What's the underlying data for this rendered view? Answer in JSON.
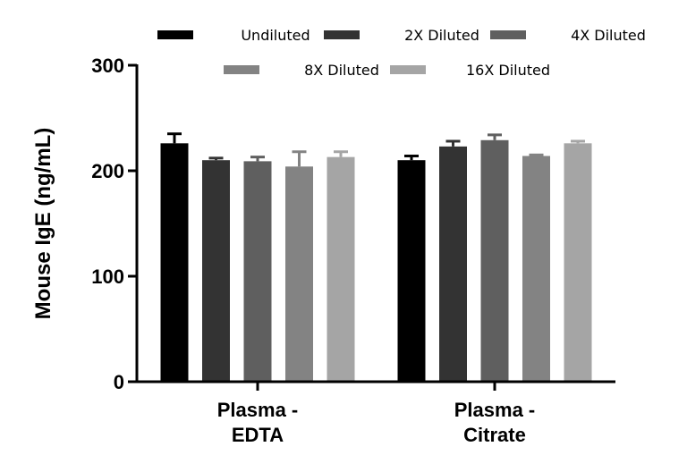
{
  "chart_data": {
    "type": "bar",
    "title": "",
    "xlabel": "",
    "ylabel": "Mouse IgE (ng/mL)",
    "ylim": [
      0,
      300
    ],
    "yticks": [
      0,
      100,
      200,
      300
    ],
    "grid": false,
    "legend_position": "top",
    "categories": [
      [
        "Plasma -",
        "EDTA"
      ],
      [
        "Plasma -",
        "Citrate"
      ]
    ],
    "series": [
      {
        "name": "Undiluted",
        "color": "#000000",
        "values": [
          226,
          210
        ],
        "errors": [
          9,
          4
        ]
      },
      {
        "name": "2X Diluted",
        "color": "#333333",
        "values": [
          210,
          223
        ],
        "errors": [
          2,
          5
        ]
      },
      {
        "name": "4X Diluted",
        "color": "#5f5f5f",
        "values": [
          209,
          229
        ],
        "errors": [
          4,
          5
        ]
      },
      {
        "name": "8X Diluted",
        "color": "#838383",
        "values": [
          204,
          214
        ],
        "errors": [
          14,
          1
        ]
      },
      {
        "name": "16X Diluted",
        "color": "#a5a5a5",
        "values": [
          213,
          226
        ],
        "errors": [
          5,
          2
        ]
      }
    ]
  }
}
